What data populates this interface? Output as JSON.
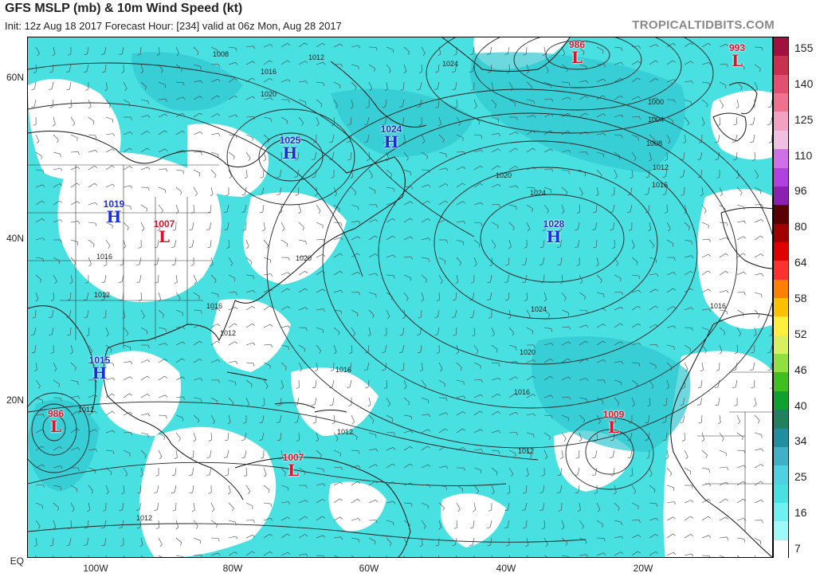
{
  "header": {
    "title": "GFS MSLP (mb) & 10m Wind Speed (kt)",
    "subtitle": "Init: 12z Aug 18 2017   Forecast Hour: [234]   valid at 06z Mon, Aug 28 2017",
    "brand": "TROPICALTIDBITS.COM"
  },
  "axes": {
    "lat_labels": [
      "60N",
      "40N",
      "20N",
      "EQ"
    ],
    "lon_labels": [
      "100W",
      "80W",
      "60W",
      "40W",
      "20W"
    ]
  },
  "colorbar": {
    "labels": [
      "155",
      "140",
      "125",
      "110",
      "96",
      "80",
      "64",
      "58",
      "52",
      "46",
      "40",
      "34",
      "25",
      "16",
      "7"
    ],
    "colors": [
      "#a01040",
      "#c83050",
      "#e05070",
      "#f07090",
      "#f4a0c0",
      "#f0c0e0",
      "#d070e8",
      "#b040e0",
      "#8c20b0",
      "#5a0000",
      "#a00000",
      "#e00000",
      "#ff3030",
      "#ff8000",
      "#ffc000",
      "#ffee40",
      "#d8f060",
      "#90e040",
      "#40c020",
      "#10a030",
      "#208060",
      "#2090a0",
      "#40b0c8",
      "#50d0e0",
      "#48e0e0",
      "#70f0f0",
      "#a0f8f8",
      "#ffffff"
    ]
  },
  "pressure_centers": [
    {
      "type": "L",
      "value": "986",
      "name": "low-986"
    },
    {
      "type": "L",
      "value": "993",
      "name": "low-993"
    },
    {
      "type": "H",
      "value": "1025",
      "name": "high-1025"
    },
    {
      "type": "H",
      "value": "1024",
      "name": "high-1024"
    },
    {
      "type": "H",
      "value": "1019",
      "name": "high-1019"
    },
    {
      "type": "L",
      "value": "1007",
      "name": "low-1007-north"
    },
    {
      "type": "H",
      "value": "1028",
      "name": "high-1028"
    },
    {
      "type": "H",
      "value": "1015",
      "name": "high-1015"
    },
    {
      "type": "L",
      "value": "986",
      "name": "low-986-pacific"
    },
    {
      "type": "L",
      "value": "1009",
      "name": "low-1009"
    },
    {
      "type": "L",
      "value": "1007",
      "name": "low-1007-south"
    }
  ],
  "isobar_labels": [
    "1008",
    "1012",
    "1016",
    "1020",
    "1024",
    "1000",
    "1004",
    "1008",
    "1012",
    "1016",
    "1020",
    "1024",
    "1024",
    "1020",
    "1016",
    "1012",
    "1012",
    "1016",
    "1016",
    "1012",
    "1012",
    "1012",
    "1016",
    "1012",
    "1020",
    "1016"
  ]
}
